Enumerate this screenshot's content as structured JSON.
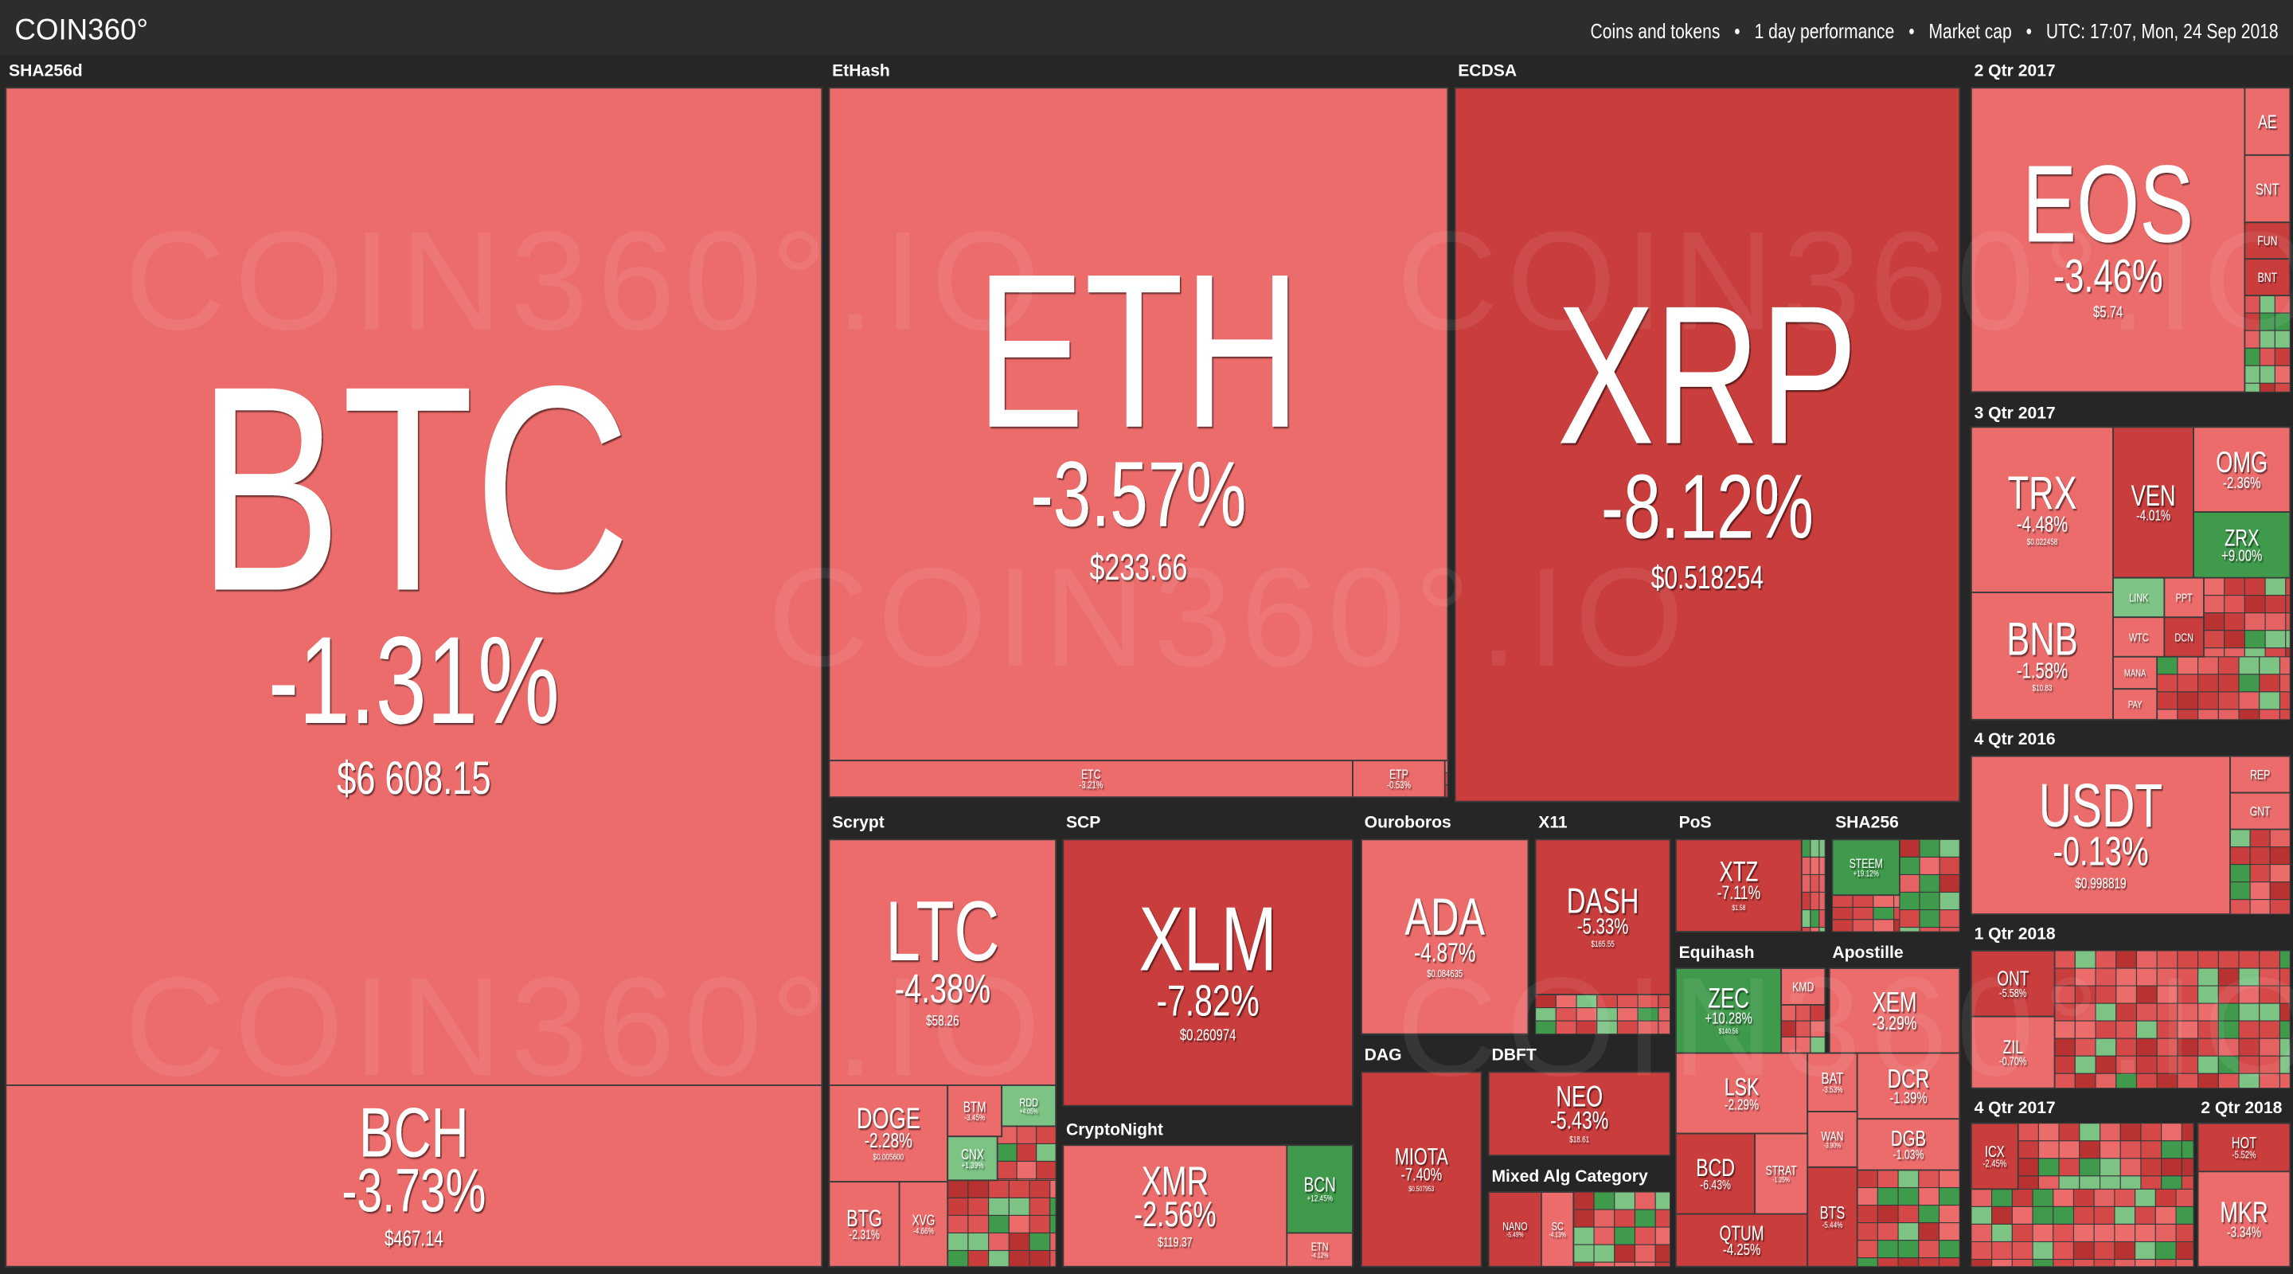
{
  "header": {
    "logo": "COIN360°",
    "separator": "•",
    "filters": [
      "Coins and tokens",
      "1 day performance",
      "Market cap"
    ],
    "time": "UTC: 17:07, Mon, 24 Sep 2018"
  },
  "watermark": "COIN360°.IO",
  "groups": [
    {
      "label": "SHA256d",
      "tiles": [
        {
          "symbol": "BTC",
          "change": "-1.31%",
          "price": "$6 608.15"
        },
        {
          "symbol": "BCH",
          "change": "-3.73%",
          "price": "$467.14"
        }
      ]
    },
    {
      "label": "EtHash",
      "tiles": [
        {
          "symbol": "ETH",
          "change": "-3.57%",
          "price": "$233.66"
        },
        {
          "symbol": "ETC",
          "change": "-3.21%"
        },
        {
          "symbol": "ETP",
          "change": "-0.53%"
        }
      ]
    },
    {
      "label": "ECDSA",
      "tiles": [
        {
          "symbol": "XRP",
          "change": "-8.12%",
          "price": "$0.518254"
        }
      ]
    },
    {
      "label": "2 Qtr 2017",
      "tiles": [
        {
          "symbol": "EOS",
          "change": "-3.46%",
          "price": "$5.74"
        },
        {
          "symbol": "AE"
        },
        {
          "symbol": "SNT"
        },
        {
          "symbol": "FUN"
        },
        {
          "symbol": "BNT"
        }
      ]
    },
    {
      "label": "3 Qtr 2017",
      "tiles": [
        {
          "symbol": "TRX",
          "change": "-4.48%",
          "price": "$0.022458"
        },
        {
          "symbol": "VEN",
          "change": "-4.01%"
        },
        {
          "symbol": "OMG",
          "change": "-2.36%"
        },
        {
          "symbol": "ZRX",
          "change": "+9.00%"
        },
        {
          "symbol": "BNB",
          "change": "-1.58%",
          "price": "$10.83"
        },
        {
          "symbol": "LINK"
        },
        {
          "symbol": "PPT"
        },
        {
          "symbol": "WTC"
        },
        {
          "symbol": "DCN"
        },
        {
          "symbol": "MANA"
        },
        {
          "symbol": "PAY"
        }
      ]
    },
    {
      "label": "4 Qtr 2016",
      "tiles": [
        {
          "symbol": "USDT",
          "change": "-0.13%",
          "price": "$0.998819"
        },
        {
          "symbol": "REP"
        },
        {
          "symbol": "GNT"
        }
      ]
    },
    {
      "label": "1 Qtr 2018",
      "tiles": [
        {
          "symbol": "ONT",
          "change": "-5.58%"
        },
        {
          "symbol": "ZIL",
          "change": "-0.70%"
        }
      ]
    },
    {
      "label": "4 Qtr 2017",
      "tiles": [
        {
          "symbol": "ICX",
          "change": "-2.45%"
        }
      ]
    },
    {
      "label": "2 Qtr 2018",
      "tiles": [
        {
          "symbol": "HOT",
          "change": "-5.52%"
        },
        {
          "symbol": "MKR",
          "change": "-3.34%"
        }
      ]
    },
    {
      "label": "Scrypt",
      "tiles": [
        {
          "symbol": "LTC",
          "change": "-4.38%",
          "price": "$58.26"
        },
        {
          "symbol": "DOGE",
          "change": "-2.28%",
          "price": "$0.005600"
        },
        {
          "symbol": "BTG",
          "change": "-2.31%"
        },
        {
          "symbol": "XVG",
          "change": "-4.66%"
        },
        {
          "symbol": "BTM",
          "change": "-3.45%"
        },
        {
          "symbol": "RDD",
          "change": "+4.05%"
        },
        {
          "symbol": "CNX",
          "change": "+1.39%"
        }
      ]
    },
    {
      "label": "SCP",
      "tiles": [
        {
          "symbol": "XLM",
          "change": "-7.82%",
          "price": "$0.260974"
        }
      ]
    },
    {
      "label": "CryptoNight",
      "tiles": [
        {
          "symbol": "XMR",
          "change": "-2.56%",
          "price": "$119.37"
        },
        {
          "symbol": "BCN",
          "change": "+12.45%"
        },
        {
          "symbol": "ETN",
          "change": "-4.12%"
        }
      ]
    },
    {
      "label": "Ouroboros",
      "tiles": [
        {
          "symbol": "ADA",
          "change": "-4.87%",
          "price": "$0.084635"
        }
      ]
    },
    {
      "label": "X11",
      "tiles": [
        {
          "symbol": "DASH",
          "change": "-5.33%",
          "price": "$165.55"
        }
      ]
    },
    {
      "label": "PoS",
      "tiles": [
        {
          "symbol": "XTZ",
          "change": "-7.11%",
          "price": "$1.58"
        }
      ]
    },
    {
      "label": "SHA256",
      "tiles": [
        {
          "symbol": "STEEM",
          "change": "+19.12%"
        }
      ]
    },
    {
      "label": "Equihash",
      "tiles": [
        {
          "symbol": "ZEC",
          "change": "+10.28%",
          "price": "$140.56"
        },
        {
          "symbol": "KMD"
        }
      ]
    },
    {
      "label": "Apostille",
      "tiles": [
        {
          "symbol": "XEM",
          "change": "-3.29%"
        }
      ]
    },
    {
      "label": "DAG",
      "tiles": [
        {
          "symbol": "MIOTA",
          "change": "-7.40%",
          "price": "$0.507953"
        }
      ]
    },
    {
      "label": "DBFT",
      "tiles": [
        {
          "symbol": "NEO",
          "change": "-5.43%",
          "price": "$18.61"
        }
      ]
    },
    {
      "label": "Mixed Alg Category",
      "tiles": [
        {
          "symbol": "NANO",
          "change": "-5.49%"
        },
        {
          "symbol": "SC",
          "change": "-4.13%"
        }
      ]
    },
    {
      "tiles": [
        {
          "symbol": "LSK",
          "change": "-2.29%"
        },
        {
          "symbol": "BAT",
          "change": "-3.53%"
        },
        {
          "symbol": "DCR",
          "change": "-1.39%"
        },
        {
          "symbol": "WAN",
          "change": "-3.90%"
        },
        {
          "symbol": "DGB",
          "change": "-1.03%"
        },
        {
          "symbol": "BCD",
          "change": "-6.43%"
        },
        {
          "symbol": "STRAT",
          "change": "-1.25%"
        },
        {
          "symbol": "QTUM",
          "change": "-4.25%"
        },
        {
          "symbol": "BTS",
          "change": "-5.44%"
        }
      ]
    }
  ]
}
